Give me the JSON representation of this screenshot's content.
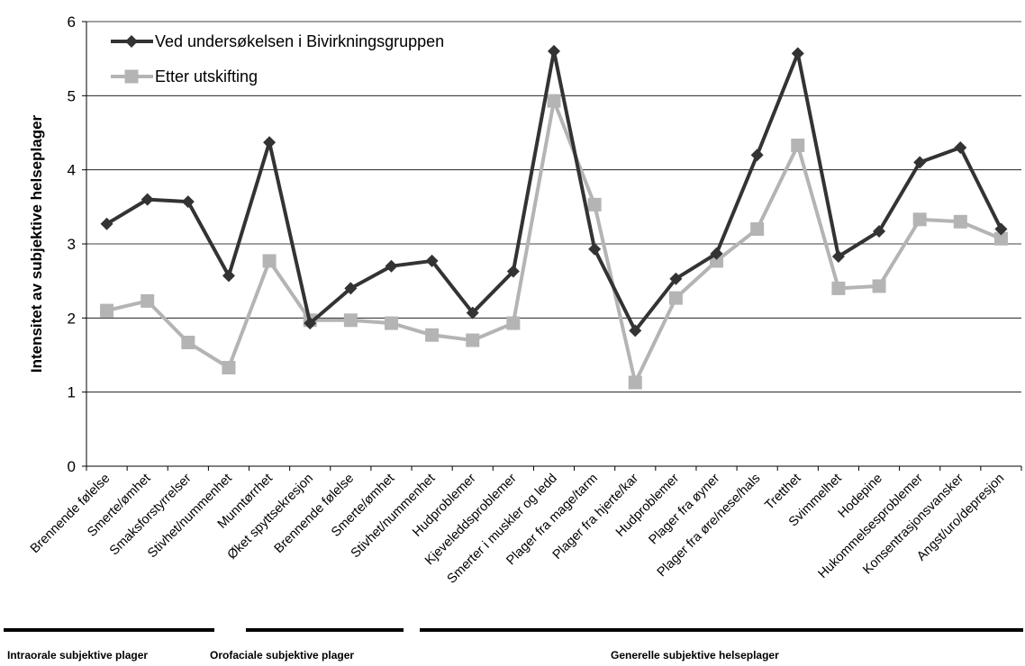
{
  "chart_data": {
    "type": "line",
    "title": "",
    "xlabel": "",
    "ylabel": "Intensitet av subjektive helseplager",
    "ylim": [
      0,
      6
    ],
    "yticks": [
      "0",
      "1",
      "2",
      "3",
      "4",
      "5",
      "6"
    ],
    "grid": true,
    "legend_position": "top-left",
    "categories": [
      "Brennende følelse",
      "Smerte/ømhet",
      "Smaksforstyrrelser",
      "Stivhet/nummenhet",
      "Munntørrhet",
      "Øket spyttsekresjon",
      "Brennende følelse",
      "Smerte/ømhet",
      "Stivhet/nummenhet",
      "Hudproblemer",
      "Kjeveleddsproblemer",
      "Smerter i muskler og ledd",
      "Plager fra mage/tarm",
      "Plager fra hjerte/kar",
      "Hudproblemer",
      "Plager fra øyner",
      "Plager fra øre/nese/hals",
      "Tretthet",
      "Svimmelhet",
      "Hodepine",
      "Hukommelsesproblemer",
      "Konsentrasjonsvansker",
      "Angst/uro/depresjon"
    ],
    "series": [
      {
        "name": "Ved undersøkelsen i Bivirkningsgruppen",
        "color": "#333333",
        "marker": "diamond",
        "values": [
          3.27,
          3.6,
          3.57,
          2.57,
          4.37,
          1.93,
          2.4,
          2.7,
          2.77,
          2.07,
          2.63,
          5.6,
          2.93,
          1.83,
          2.53,
          2.87,
          4.2,
          5.57,
          2.83,
          3.17,
          4.1,
          4.3,
          3.2
        ]
      },
      {
        "name": "Etter utskifting",
        "color": "#b4b4b4",
        "marker": "square",
        "values": [
          2.1,
          2.23,
          1.67,
          1.33,
          2.77,
          1.97,
          1.97,
          1.93,
          1.77,
          1.7,
          1.93,
          4.93,
          3.53,
          1.13,
          2.27,
          2.77,
          3.2,
          4.33,
          2.4,
          2.43,
          3.33,
          3.3,
          3.07
        ]
      }
    ],
    "groups": [
      {
        "label": "Intraorale subjektive plager",
        "from": 0,
        "to": 4
      },
      {
        "label": "Orofaciale subjektive plager",
        "from": 5,
        "to": 8
      },
      {
        "label": "Generelle subjektive helseplager",
        "from": 9,
        "to": 22
      }
    ]
  }
}
